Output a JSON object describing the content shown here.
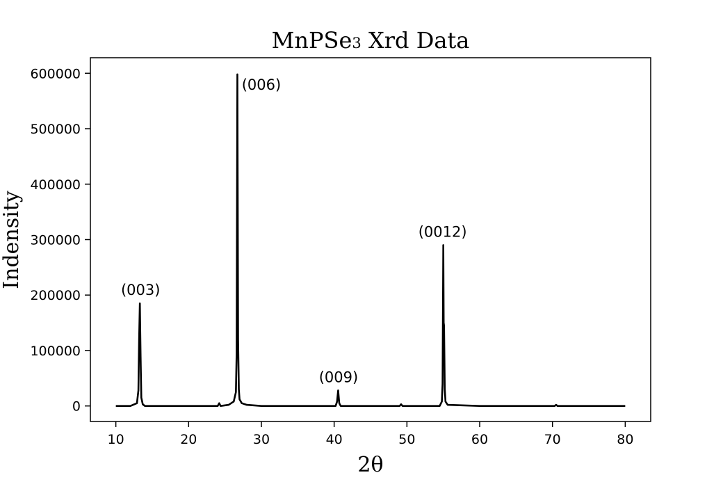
{
  "chart_data": {
    "type": "line",
    "title_main": "MnPSe",
    "title_sub": "3",
    "title_rest": " Xrd Data",
    "xlabel": "2θ",
    "ylabel": "Indensity",
    "xlim": [
      6.5,
      83.5
    ],
    "ylim": [
      -28000,
      628000
    ],
    "grid": false,
    "xticks": [
      10,
      20,
      30,
      40,
      50,
      60,
      70,
      80
    ],
    "yticks": [
      0,
      100000,
      200000,
      300000,
      400000,
      500000,
      600000
    ],
    "series": [
      {
        "x": [
          10,
          12.0,
          12.9,
          13.1,
          13.2,
          13.3,
          13.4,
          13.5,
          13.7,
          14.0,
          20,
          24.0,
          24.2,
          24.4,
          25.5,
          26.2,
          26.5,
          26.6,
          26.7,
          26.75,
          26.8,
          26.9,
          27.0,
          27.3,
          28.0,
          30,
          40.2,
          40.4,
          40.55,
          40.7,
          40.9,
          49.0,
          49.2,
          49.4,
          54.5,
          54.8,
          54.9,
          55.0,
          55.05,
          55.1,
          55.2,
          55.3,
          55.6,
          60,
          70.3,
          70.5,
          70.7,
          80
        ],
        "y": [
          0,
          0,
          5000,
          28000,
          120000,
          185000,
          90000,
          15000,
          3000,
          0,
          0,
          0,
          5000,
          0,
          2000,
          8000,
          25000,
          95000,
          598000,
          360000,
          120000,
          30000,
          12000,
          5000,
          2000,
          0,
          0,
          8000,
          28000,
          5000,
          0,
          0,
          3000,
          0,
          0,
          8000,
          40000,
          290000,
          150000,
          145000,
          30000,
          8000,
          2000,
          0,
          0,
          2000,
          0,
          0
        ]
      }
    ],
    "annotations": [
      {
        "text": "(003)",
        "x": 13.4,
        "y": 185000,
        "anchor": "middle"
      },
      {
        "text": "(006)",
        "x": 27.3,
        "y": 555000,
        "anchor": "start"
      },
      {
        "text": "(009)",
        "x": 40.6,
        "y": 28000,
        "anchor": "middle"
      },
      {
        "text": "(0012)",
        "x": 54.9,
        "y": 290000,
        "anchor": "middle"
      }
    ]
  }
}
